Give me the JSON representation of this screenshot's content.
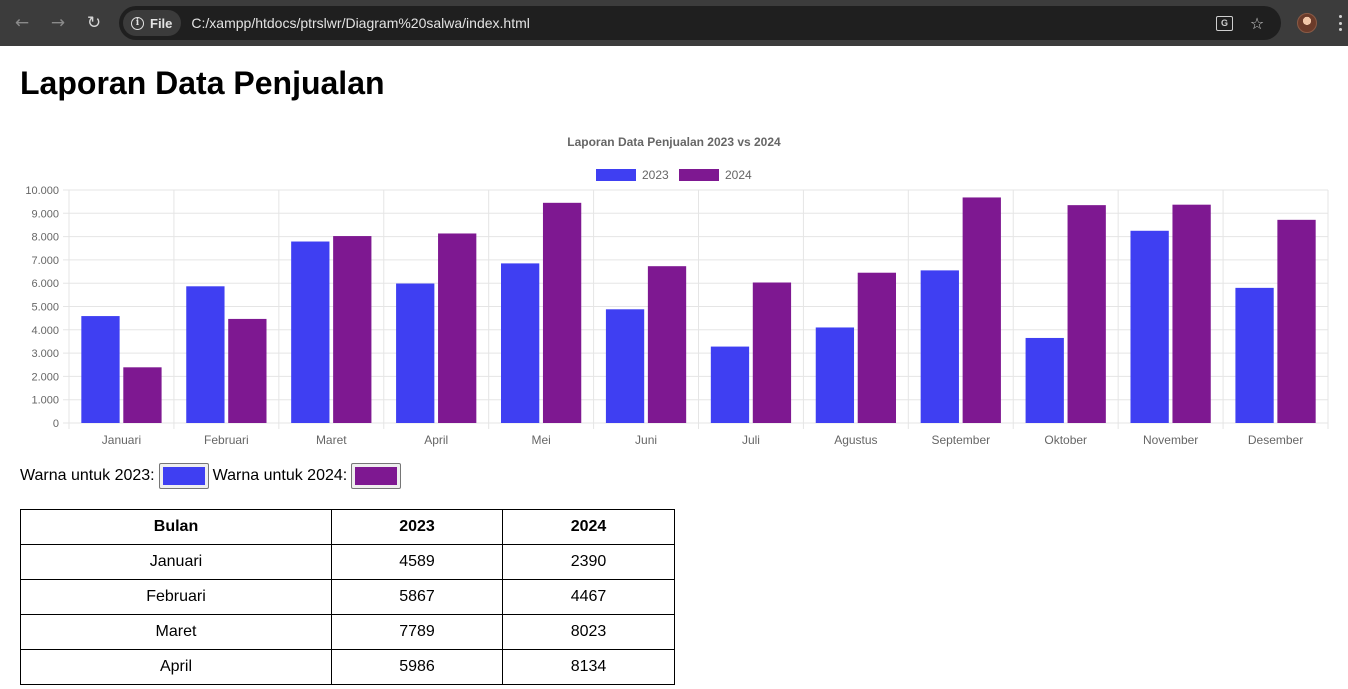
{
  "browser": {
    "file_label": "File",
    "url": "C:/xampp/htdocs/ptrslwr/Diagram%20salwa/index.html"
  },
  "page": {
    "title": "Laporan Data Penjualan"
  },
  "chart_data": {
    "type": "bar",
    "title": "Laporan Data Penjualan 2023 vs 2024",
    "categories": [
      "Januari",
      "Februari",
      "Maret",
      "April",
      "Mei",
      "Juni",
      "Juli",
      "Agustus",
      "September",
      "Oktober",
      "November",
      "Desember"
    ],
    "series": [
      {
        "name": "2023",
        "color": "#3f3ff2",
        "values": [
          4589,
          5867,
          7789,
          5986,
          6850,
          4880,
          3280,
          4100,
          6550,
          3650,
          8250,
          5800
        ]
      },
      {
        "name": "2024",
        "color": "#7e1891",
        "values": [
          2390,
          4467,
          8023,
          8134,
          9450,
          6730,
          6030,
          6450,
          9680,
          9350,
          9370,
          8720
        ]
      }
    ],
    "ylim": [
      0,
      10000
    ],
    "yticks": [
      "0",
      "1.000",
      "2.000",
      "3.000",
      "4.000",
      "5.000",
      "6.000",
      "7.000",
      "8.000",
      "9.000",
      "10.000"
    ],
    "legend_position": "top",
    "grid": true
  },
  "color_controls": {
    "label_2023": "Warna untuk 2023:",
    "label_2024": "Warna untuk 2024:",
    "color_2023": "#3f3ff2",
    "color_2024": "#7e1891"
  },
  "table": {
    "headers": [
      "Bulan",
      "2023",
      "2024"
    ],
    "rows": [
      [
        "Januari",
        "4589",
        "2390"
      ],
      [
        "Februari",
        "5867",
        "4467"
      ],
      [
        "Maret",
        "7789",
        "8023"
      ],
      [
        "April",
        "5986",
        "8134"
      ]
    ]
  }
}
